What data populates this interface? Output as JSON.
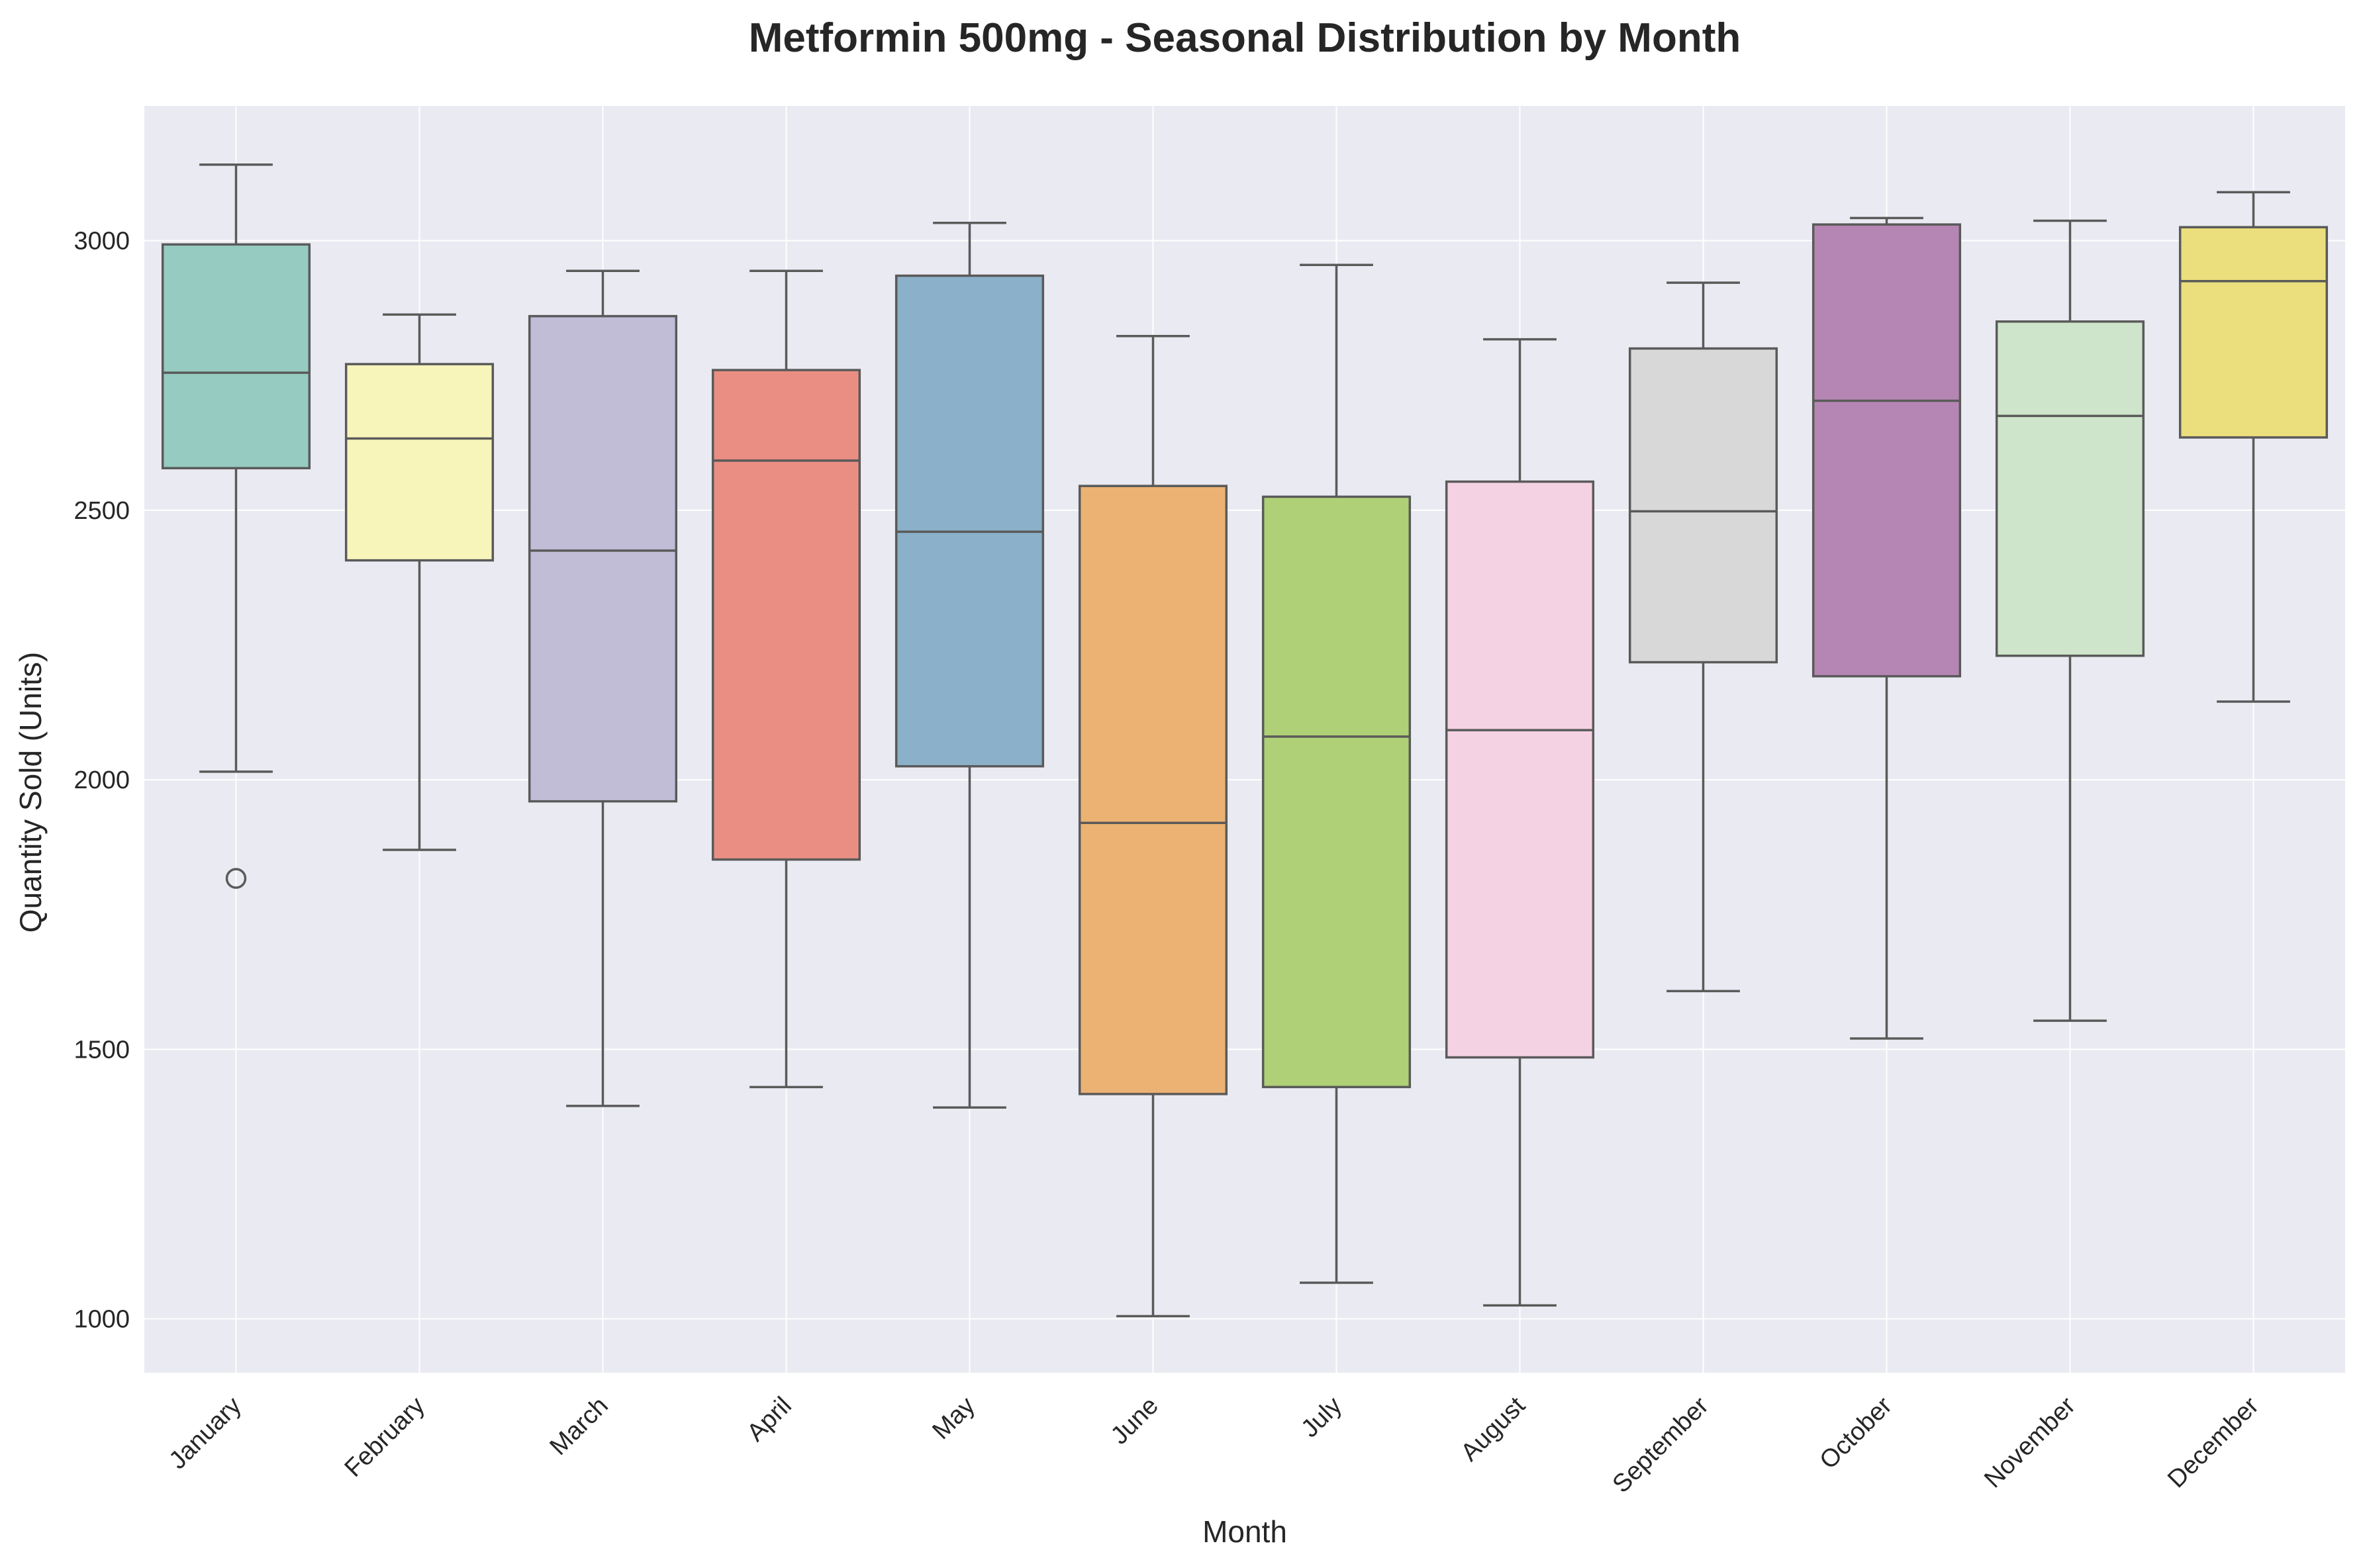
{
  "chart_data": {
    "type": "box",
    "title": "Metformin 500mg - Seasonal Distribution by Month",
    "xlabel": "Month",
    "ylabel": "Quantity Sold (Units)",
    "ylim": [
      900,
      3250
    ],
    "yticks": [
      1000,
      1500,
      2000,
      2500,
      3000
    ],
    "grid": true,
    "legend": "none",
    "categories": [
      "January",
      "February",
      "March",
      "April",
      "May",
      "June",
      "July",
      "August",
      "September",
      "October",
      "November",
      "December"
    ],
    "boxes": [
      {
        "category": "January",
        "whisker_low": 2015,
        "q1": 2578,
        "median": 2755,
        "q3": 2993,
        "whisker_high": 3141,
        "outliers": [
          1817
        ],
        "color": "#96cbc2"
      },
      {
        "category": "February",
        "whisker_low": 1870,
        "q1": 2407,
        "median": 2633,
        "q3": 2771,
        "whisker_high": 2863,
        "outliers": [],
        "color": "#f7f5ba"
      },
      {
        "category": "March",
        "whisker_low": 1395,
        "q1": 1960,
        "median": 2425,
        "q3": 2860,
        "whisker_high": 2944,
        "outliers": [],
        "color": "#c1bdd7"
      },
      {
        "category": "April",
        "whisker_low": 1430,
        "q1": 1852,
        "median": 2592,
        "q3": 2760,
        "whisker_high": 2944,
        "outliers": [],
        "color": "#ea8e83"
      },
      {
        "category": "May",
        "whisker_low": 1392,
        "q1": 2025,
        "median": 2460,
        "q3": 2935,
        "whisker_high": 3033,
        "outliers": [],
        "color": "#8bb0c9"
      },
      {
        "category": "June",
        "whisker_low": 1005,
        "q1": 1417,
        "median": 1920,
        "q3": 2545,
        "whisker_high": 2823,
        "outliers": [],
        "color": "#ebb273"
      },
      {
        "category": "July",
        "whisker_low": 1067,
        "q1": 1430,
        "median": 2080,
        "q3": 2525,
        "whisker_high": 2955,
        "outliers": [],
        "color": "#afd077"
      },
      {
        "category": "August",
        "whisker_low": 1025,
        "q1": 1485,
        "median": 2092,
        "q3": 2553,
        "whisker_high": 2817,
        "outliers": [],
        "color": "#f5d2e3"
      },
      {
        "category": "September",
        "whisker_low": 1608,
        "q1": 2218,
        "median": 2498,
        "q3": 2800,
        "whisker_high": 2922,
        "outliers": [],
        "color": "#d8d8d8"
      },
      {
        "category": "October",
        "whisker_low": 1520,
        "q1": 2192,
        "median": 2703,
        "q3": 3030,
        "whisker_high": 3042,
        "outliers": [],
        "color": "#b586b3"
      },
      {
        "category": "November",
        "whisker_low": 1553,
        "q1": 2230,
        "median": 2675,
        "q3": 2850,
        "whisker_high": 3037,
        "outliers": [],
        "color": "#cfe5cb"
      },
      {
        "category": "December",
        "whisker_low": 2145,
        "q1": 2635,
        "median": 2925,
        "q3": 3025,
        "whisker_high": 3090,
        "outliers": [],
        "color": "#ebde7d"
      }
    ],
    "colors": {
      "background": "#eaeaf2",
      "grid": "#ffffff",
      "line": "#5a5a5a",
      "text": "#262626"
    }
  }
}
